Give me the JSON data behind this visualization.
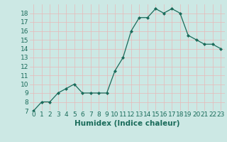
{
  "xlabel": "Humidex (Indice chaleur)",
  "ylabel": "",
  "x": [
    0,
    1,
    2,
    3,
    4,
    5,
    6,
    7,
    8,
    9,
    10,
    11,
    12,
    13,
    14,
    15,
    16,
    17,
    18,
    19,
    20,
    21,
    22,
    23
  ],
  "y": [
    7,
    8,
    8,
    9,
    9.5,
    10,
    9,
    9,
    9,
    9,
    11.5,
    13,
    16,
    17.5,
    17.5,
    18.5,
    18,
    18.5,
    18,
    15.5,
    15,
    14.5,
    14.5,
    14
  ],
  "line_color": "#1a6b5a",
  "marker_color": "#1a6b5a",
  "bg_color": "#cce8e4",
  "grid_color": "#e8b8b8",
  "axis_label_color": "#1a6b5a",
  "tick_label_color": "#1a6b5a",
  "ylim": [
    7,
    19
  ],
  "yticks": [
    7,
    8,
    9,
    10,
    11,
    12,
    13,
    14,
    15,
    16,
    17,
    18
  ],
  "xticks": [
    0,
    1,
    2,
    3,
    4,
    5,
    6,
    7,
    8,
    9,
    10,
    11,
    12,
    13,
    14,
    15,
    16,
    17,
    18,
    19,
    20,
    21,
    22,
    23
  ],
  "tick_fontsize": 6.5,
  "label_fontsize": 7.5
}
